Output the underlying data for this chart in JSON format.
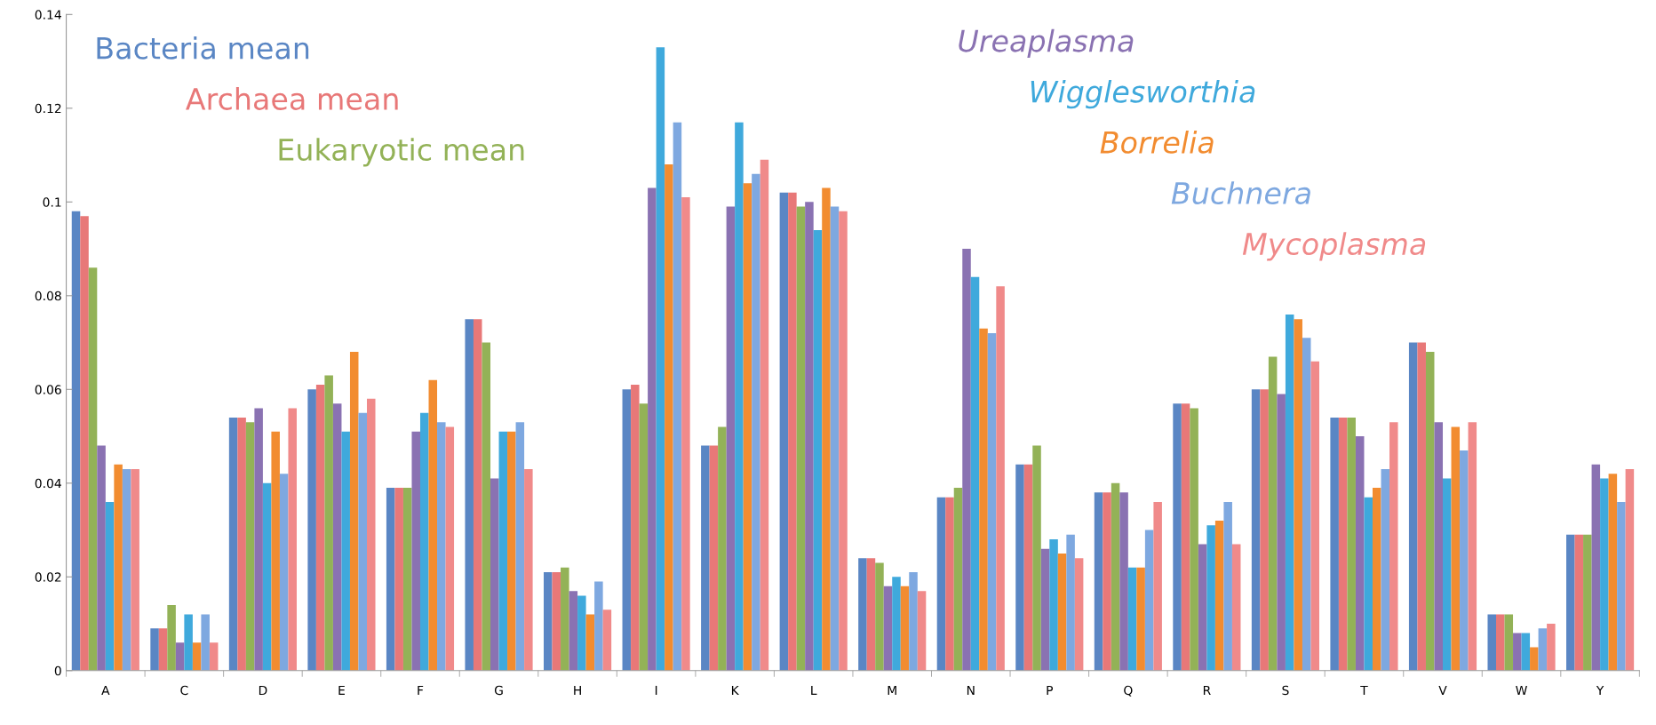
{
  "chart_data": {
    "type": "bar",
    "categories": [
      "A",
      "C",
      "D",
      "E",
      "F",
      "G",
      "H",
      "I",
      "K",
      "L",
      "M",
      "N",
      "P",
      "Q",
      "R",
      "S",
      "T",
      "V",
      "W",
      "Y"
    ],
    "ylim": [
      0,
      0.14
    ],
    "yticks": [
      {
        "value": 0,
        "label": "0"
      },
      {
        "value": 0.02,
        "label": "0.02"
      },
      {
        "value": 0.04,
        "label": "0.04"
      },
      {
        "value": 0.06,
        "label": "0.06"
      },
      {
        "value": 0.08,
        "label": "0.08"
      },
      {
        "value": 0.1,
        "label": "0.1"
      },
      {
        "value": 0.12,
        "label": "0.12"
      },
      {
        "value": 0.14,
        "label": "0.14"
      }
    ],
    "grid": false,
    "legend": "top",
    "series": [
      {
        "name": "Bacteria mean",
        "color": "#5a86c4",
        "values": [
          0.098,
          0.009,
          0.054,
          0.06,
          0.039,
          0.075,
          0.021,
          0.06,
          0.048,
          0.102,
          0.024,
          0.037,
          0.044,
          0.038,
          0.057,
          0.06,
          0.054,
          0.07,
          0.012,
          0.029
        ]
      },
      {
        "name": "Archaea mean",
        "color": "#e87878",
        "values": [
          0.097,
          0.009,
          0.054,
          0.061,
          0.039,
          0.075,
          0.021,
          0.061,
          0.048,
          0.102,
          0.024,
          0.037,
          0.044,
          0.038,
          0.057,
          0.06,
          0.054,
          0.07,
          0.012,
          0.029
        ]
      },
      {
        "name": "Eukaryotic mean",
        "color": "#93b257",
        "values": [
          0.086,
          0.014,
          0.053,
          0.063,
          0.039,
          0.07,
          0.022,
          0.057,
          0.052,
          0.099,
          0.023,
          0.039,
          0.048,
          0.04,
          0.056,
          0.067,
          0.054,
          0.068,
          0.012,
          0.029
        ]
      },
      {
        "name": "Ureaplasma",
        "color": "#8a72b2",
        "values": [
          0.048,
          0.006,
          0.056,
          0.057,
          0.051,
          0.041,
          0.017,
          0.103,
          0.099,
          0.1,
          0.018,
          0.09,
          0.026,
          0.038,
          0.027,
          0.059,
          0.05,
          0.053,
          0.008,
          0.044
        ]
      },
      {
        "name": "Wigglesworthia",
        "color": "#3fa9dc",
        "values": [
          0.036,
          0.012,
          0.04,
          0.051,
          0.055,
          0.051,
          0.016,
          0.133,
          0.117,
          0.094,
          0.02,
          0.084,
          0.028,
          0.022,
          0.031,
          0.076,
          0.037,
          0.041,
          0.008,
          0.041
        ]
      },
      {
        "name": "Borrelia",
        "color": "#f28c30",
        "values": [
          0.044,
          0.006,
          0.051,
          0.068,
          0.062,
          0.051,
          0.012,
          0.108,
          0.104,
          0.103,
          0.018,
          0.073,
          0.025,
          0.022,
          0.032,
          0.075,
          0.039,
          0.052,
          0.005,
          0.042
        ]
      },
      {
        "name": "Buchnera",
        "color": "#7ea8e0",
        "values": [
          0.043,
          0.012,
          0.042,
          0.055,
          0.053,
          0.053,
          0.019,
          0.117,
          0.106,
          0.099,
          0.021,
          0.072,
          0.029,
          0.03,
          0.036,
          0.071,
          0.043,
          0.047,
          0.009,
          0.036
        ]
      },
      {
        "name": "Mycoplasma",
        "color": "#f08a8a",
        "values": [
          0.043,
          0.006,
          0.056,
          0.058,
          0.052,
          0.043,
          0.013,
          0.101,
          0.109,
          0.098,
          0.017,
          0.082,
          0.024,
          0.036,
          0.027,
          0.066,
          0.053,
          0.053,
          0.01,
          0.043
        ]
      }
    ]
  }
}
